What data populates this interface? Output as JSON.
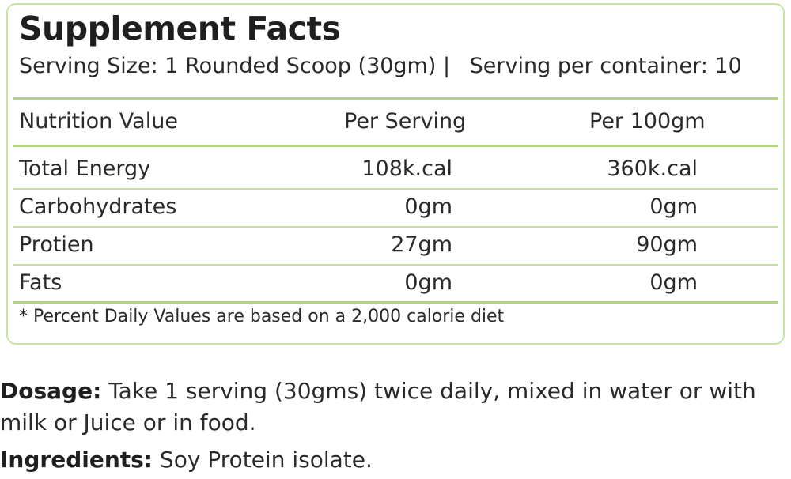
{
  "panel": {
    "title": "Supplement Facts",
    "serving_size": "Serving Size: 1 Rounded Scoop (30gm) |",
    "servings_per_container": "Serving per container: 10"
  },
  "table": {
    "headers": [
      "Nutrition Value",
      "Per Serving",
      "Per 100gm"
    ],
    "rows": [
      {
        "name": "Total Energy",
        "per_serving": "108k.cal",
        "per_100gm": "360k.cal"
      },
      {
        "name": "Carbohydrates",
        "per_serving": "0gm",
        "per_100gm": "0gm"
      },
      {
        "name": "Protien",
        "per_serving": "27gm",
        "per_100gm": "90gm"
      },
      {
        "name": "Fats",
        "per_serving": "0gm",
        "per_100gm": "0gm"
      }
    ],
    "footnote": "* Percent Daily Values are based on a 2,000 calorie diet"
  },
  "dosage": {
    "label": "Dosage:",
    "text": "Take 1 serving (30gms) twice daily, mixed in water or with milk or Juice or in food."
  },
  "ingredients": {
    "label": "Ingredients:",
    "text": "Soy Protein isolate."
  },
  "colors": {
    "rule": "#b1d57a",
    "border": "#c9e3a4"
  }
}
